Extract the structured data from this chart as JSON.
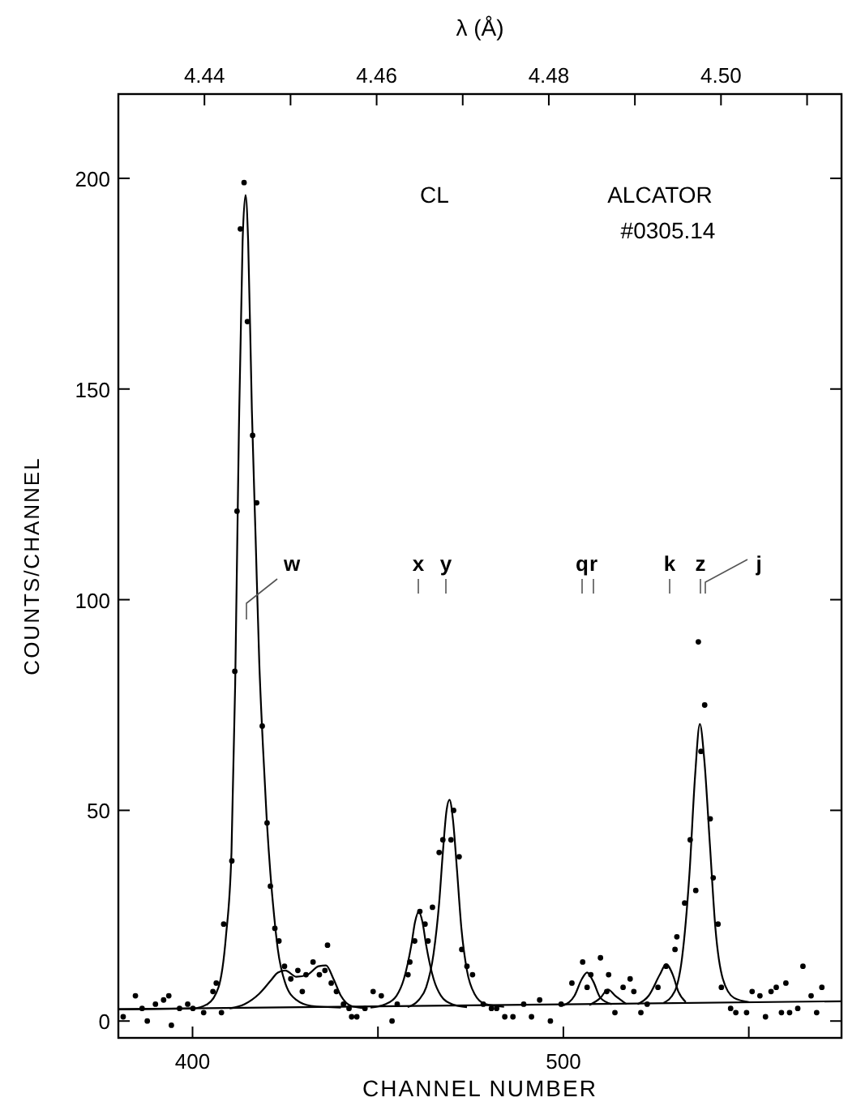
{
  "chart_data": {
    "type": "scatter",
    "xlabel": "CHANNEL NUMBER",
    "ylabel": "COUNTS/CHANNEL",
    "x2label": "λ (Å)",
    "xlim": [
      380,
      575
    ],
    "xticks": [
      400,
      {
        "value": 450,
        "label": null
      },
      500,
      {
        "value": 550,
        "label": null
      }
    ],
    "ylim": [
      -4,
      220
    ],
    "yticks": [
      0,
      50,
      100,
      150,
      200
    ],
    "x2lim": [
      4.43,
      4.514
    ],
    "x2ticks": [
      {
        "value": 4.43,
        "label": null
      },
      4.44,
      {
        "value": 4.45,
        "label": null
      },
      4.46,
      {
        "value": 4.47,
        "label": null
      },
      4.48,
      {
        "value": 4.49,
        "label": null
      },
      {
        "value": 4.5,
        "label": "4.50"
      },
      {
        "value": 4.51,
        "label": null
      }
    ],
    "grid": false,
    "annotations": [
      "CL",
      "ALCATOR",
      "#0305.14",
      "w",
      "x",
      "y",
      "q",
      "r",
      "k",
      "z",
      "j"
    ],
    "series": [
      {
        "marker": "circle",
        "color": "#000000",
        "x": [
          381.3,
          384.6,
          386.4,
          387.8,
          390,
          392.2,
          393.6,
          394.3,
          396.5,
          398.7,
          400.1,
          403,
          405.5,
          406.4,
          407.8,
          408.4,
          410.6,
          411.4,
          412,
          412.9,
          413.9,
          414.8,
          416.2,
          417.3,
          418.8,
          420.1,
          421,
          422.2,
          423.3,
          424.8,
          426.5,
          428.4,
          429.6,
          430.6,
          432.5,
          434.2,
          435.7,
          436.4,
          437.4,
          438.8,
          440.7,
          442.2,
          442.9,
          444.3,
          446.5,
          448.7,
          450.9,
          453.8,
          455.2,
          458.1,
          458.6,
          459.9,
          461.3,
          462.7,
          463.5,
          464.7,
          466.5,
          467.5,
          469.7,
          470.4,
          471.9,
          472.6,
          474,
          475.5,
          478.4,
          480.6,
          482,
          484.2,
          486.4,
          489.3,
          491.4,
          493.6,
          496.5,
          499.4,
          502.3,
          505.2,
          506.4,
          507.4,
          510,
          511.7,
          512.2,
          513.9,
          516.1,
          518,
          519,
          520.9,
          522.6,
          525.5,
          527.7,
          530.1,
          530.6,
          532.7,
          534.2,
          535.7,
          536.4,
          537.1,
          538.1,
          539.6,
          540.4,
          541.7,
          542.6,
          545.1,
          546.5,
          549.4,
          550.9,
          553,
          554.5,
          556,
          557.4,
          558.8,
          560,
          561,
          563.2,
          564.6,
          566.8,
          568.3,
          569.7
        ],
        "values": [
          1,
          6,
          3,
          0,
          4,
          5,
          6,
          -1,
          3,
          4,
          3,
          2,
          7,
          9,
          2,
          23,
          38,
          83,
          121,
          188,
          199,
          166,
          139,
          123,
          70,
          47,
          32,
          22,
          19,
          13,
          10,
          12,
          7,
          11,
          14,
          11,
          12,
          18,
          9,
          7,
          4,
          3,
          1,
          1,
          3,
          7,
          6,
          0,
          4,
          11,
          14,
          19,
          26,
          23,
          19,
          27,
          40,
          43,
          43,
          50,
          39,
          17,
          13,
          11,
          4,
          3,
          3,
          1,
          1,
          4,
          1,
          5,
          0,
          4,
          9,
          14,
          8,
          11,
          15,
          7,
          11,
          2,
          8,
          10,
          7,
          2,
          4,
          8,
          13,
          17,
          20,
          28,
          43,
          31,
          90,
          64,
          75,
          48,
          34,
          23,
          8,
          3,
          2,
          2,
          7,
          6,
          1,
          7,
          8,
          2,
          9,
          2,
          3,
          13,
          6,
          2,
          8
        ]
      },
      {
        "type": "line",
        "color": "#000000",
        "x": [
          380,
          575
        ],
        "values": [
          2.8,
          4.7
        ]
      },
      {
        "type": "line",
        "color": "#000000",
        "x": [
          380,
          400,
          404,
          407,
          409,
          410.5,
          411.5,
          412.5,
          413.5,
          414.3,
          415,
          416,
          417,
          418,
          419,
          420,
          421,
          422,
          423,
          425,
          428,
          432,
          440
        ],
        "values": [
          2.8,
          3,
          4,
          8,
          20,
          40,
          80,
          140,
          185,
          196,
          185,
          145,
          115,
          85,
          65,
          48,
          35,
          25,
          17,
          9,
          5,
          3.6,
          3.2
        ]
      },
      {
        "type": "line",
        "color": "#000000",
        "x": [
          410,
          414,
          418,
          421,
          423,
          425,
          428,
          431,
          434,
          436,
          438,
          440,
          443,
          447
        ],
        "values": [
          3,
          4,
          6.5,
          9.5,
          11.5,
          12,
          10.5,
          11,
          13,
          13.2,
          10,
          6,
          3.5,
          3
        ]
      },
      {
        "type": "line",
        "color": "#000000",
        "x": [
          448,
          452,
          455,
          457,
          459,
          460,
          461,
          462,
          463,
          465,
          467,
          470,
          474
        ],
        "values": [
          3.2,
          4,
          6,
          10,
          18,
          23.5,
          26,
          23.5,
          18,
          10,
          6,
          4,
          3.3
        ]
      },
      {
        "type": "line",
        "color": "#000000",
        "x": [
          458,
          461,
          463,
          465,
          466.5,
          467.5,
          468.5,
          469.3,
          470.2,
          471.3,
          472.5,
          474,
          476,
          479,
          484
        ],
        "values": [
          3.3,
          5,
          8,
          16,
          28,
          40,
          50,
          52.5,
          48,
          36,
          22,
          12,
          6.5,
          4,
          3.4
        ]
      },
      {
        "type": "line",
        "color": "#000000",
        "x": [
          500,
          503,
          505,
          506.4,
          508,
          510,
          513
        ],
        "values": [
          3.7,
          6,
          10,
          11.5,
          9.5,
          5.5,
          4
        ]
      },
      {
        "type": "line",
        "color": "#000000",
        "x": [
          507,
          510,
          512,
          514,
          517
        ],
        "values": [
          3.8,
          5.5,
          7.5,
          6,
          4
        ]
      },
      {
        "type": "line",
        "color": "#000000",
        "x": [
          520,
          523,
          526,
          527.7,
          529.5,
          531,
          533
        ],
        "values": [
          4,
          6,
          11,
          13.5,
          11,
          7,
          4.5
        ]
      },
      {
        "type": "line",
        "color": "#000000",
        "x": [
          527,
          530,
          532,
          534,
          535.5,
          536.8,
          538,
          539.5,
          541,
          543,
          546,
          550
        ],
        "values": [
          4.3,
          7,
          15,
          35,
          58,
          70.5,
          62,
          42,
          22,
          10,
          5.5,
          4.5
        ]
      }
    ]
  }
}
